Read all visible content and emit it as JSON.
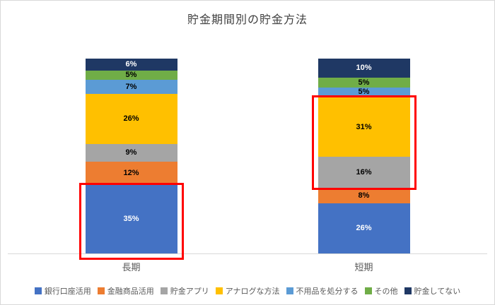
{
  "chart_data": {
    "type": "bar",
    "stacked": true,
    "title": "貯金期間別の貯金方法",
    "categories": [
      "長期",
      "短期"
    ],
    "unit": "%",
    "ylim": [
      0,
      100
    ],
    "grid": false,
    "legend_position": "bottom",
    "series": [
      {
        "name": "銀行口座活用",
        "color": "#4472C4",
        "label_color": "#FFFFFF",
        "values": [
          35,
          26
        ]
      },
      {
        "name": "金融商品活用",
        "color": "#ED7D31",
        "label_color": "#000000",
        "values": [
          12,
          8
        ]
      },
      {
        "name": "貯金アプリ",
        "color": "#A5A5A5",
        "label_color": "#000000",
        "values": [
          9,
          16
        ]
      },
      {
        "name": "アナログな方法",
        "color": "#FFC000",
        "label_color": "#000000",
        "values": [
          26,
          31
        ]
      },
      {
        "name": "不用品を処分する",
        "color": "#5B9BD5",
        "label_color": "#000000",
        "values": [
          7,
          5
        ]
      },
      {
        "name": "その他",
        "color": "#70AD47",
        "label_color": "#000000",
        "values": [
          5,
          5
        ]
      },
      {
        "name": "貯金してない",
        "color": "#1F3864",
        "label_color": "#FFFFFF",
        "values": [
          6,
          10
        ]
      }
    ],
    "annotations": [
      {
        "type": "highlight-box",
        "category": "長期",
        "series_range": [
          "銀行口座活用",
          "銀行口座活用"
        ],
        "color": "#FF0000"
      },
      {
        "type": "highlight-box",
        "category": "短期",
        "series_range": [
          "貯金アプリ",
          "アナログな方法"
        ],
        "color": "#FF0000"
      }
    ]
  }
}
